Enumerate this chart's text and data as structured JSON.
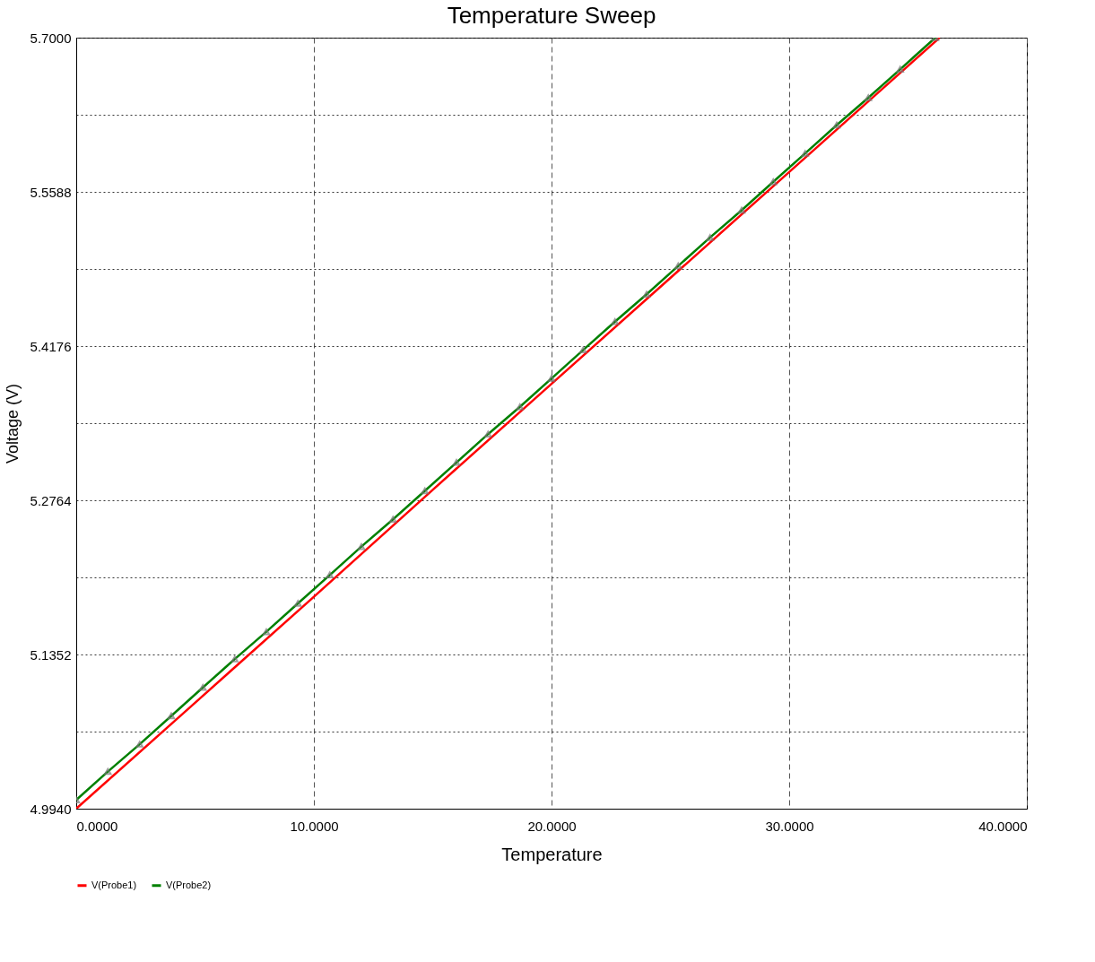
{
  "chart_data": {
    "type": "line",
    "title": "Temperature Sweep",
    "xlabel": "Temperature",
    "ylabel": "Voltage (V)",
    "xlim": [
      0,
      40
    ],
    "xticks": [
      {
        "value": 0,
        "label": "0.0000"
      },
      {
        "value": 10,
        "label": "10.0000"
      },
      {
        "value": 20,
        "label": "20.0000"
      },
      {
        "value": 30,
        "label": "30.0000"
      },
      {
        "value": 40,
        "label": "40.0000"
      }
    ],
    "ylim": [
      4.994,
      5.7
    ],
    "yticks": [
      {
        "value": 4.994,
        "label": "4.9940"
      },
      {
        "value": 5.0646,
        "label": null
      },
      {
        "value": 5.1352,
        "label": "5.1352"
      },
      {
        "value": 5.2058,
        "label": null
      },
      {
        "value": 5.2764,
        "label": "5.2764"
      },
      {
        "value": 5.347,
        "label": null
      },
      {
        "value": 5.4176,
        "label": "5.4176"
      },
      {
        "value": 5.4882,
        "label": null
      },
      {
        "value": 5.5588,
        "label": "5.5588"
      },
      {
        "value": 5.6294,
        "label": null
      },
      {
        "value": 5.7,
        "label": "5.7000"
      }
    ],
    "grid": true,
    "legend": "bottom left",
    "line_style": "solid",
    "series": [
      {
        "name": "V(Probe1)",
        "color": "#ff0000",
        "marker": "none",
        "x": [
          0,
          5,
          10,
          15,
          20,
          25,
          30,
          36.33
        ],
        "values": [
          4.994,
          5.091,
          5.188,
          5.286,
          5.383,
          5.48,
          5.577,
          5.7
        ]
      },
      {
        "name": "V(Probe2)",
        "color": "#008000",
        "marker": "triangle",
        "x": [
          0,
          1.33,
          2.67,
          4,
          5.33,
          6.67,
          8,
          9.33,
          10.67,
          12,
          13.33,
          14.67,
          16,
          17.33,
          18.67,
          20,
          21.33,
          22.67,
          24,
          25.33,
          26.67,
          28,
          29.33,
          30.67,
          32,
          33.33,
          34.67,
          36.15
        ],
        "values": [
          5.002,
          5.028,
          5.053,
          5.079,
          5.105,
          5.131,
          5.156,
          5.182,
          5.208,
          5.234,
          5.259,
          5.285,
          5.311,
          5.337,
          5.362,
          5.388,
          5.414,
          5.44,
          5.465,
          5.491,
          5.517,
          5.542,
          5.568,
          5.594,
          5.62,
          5.645,
          5.671,
          5.7
        ]
      }
    ]
  }
}
